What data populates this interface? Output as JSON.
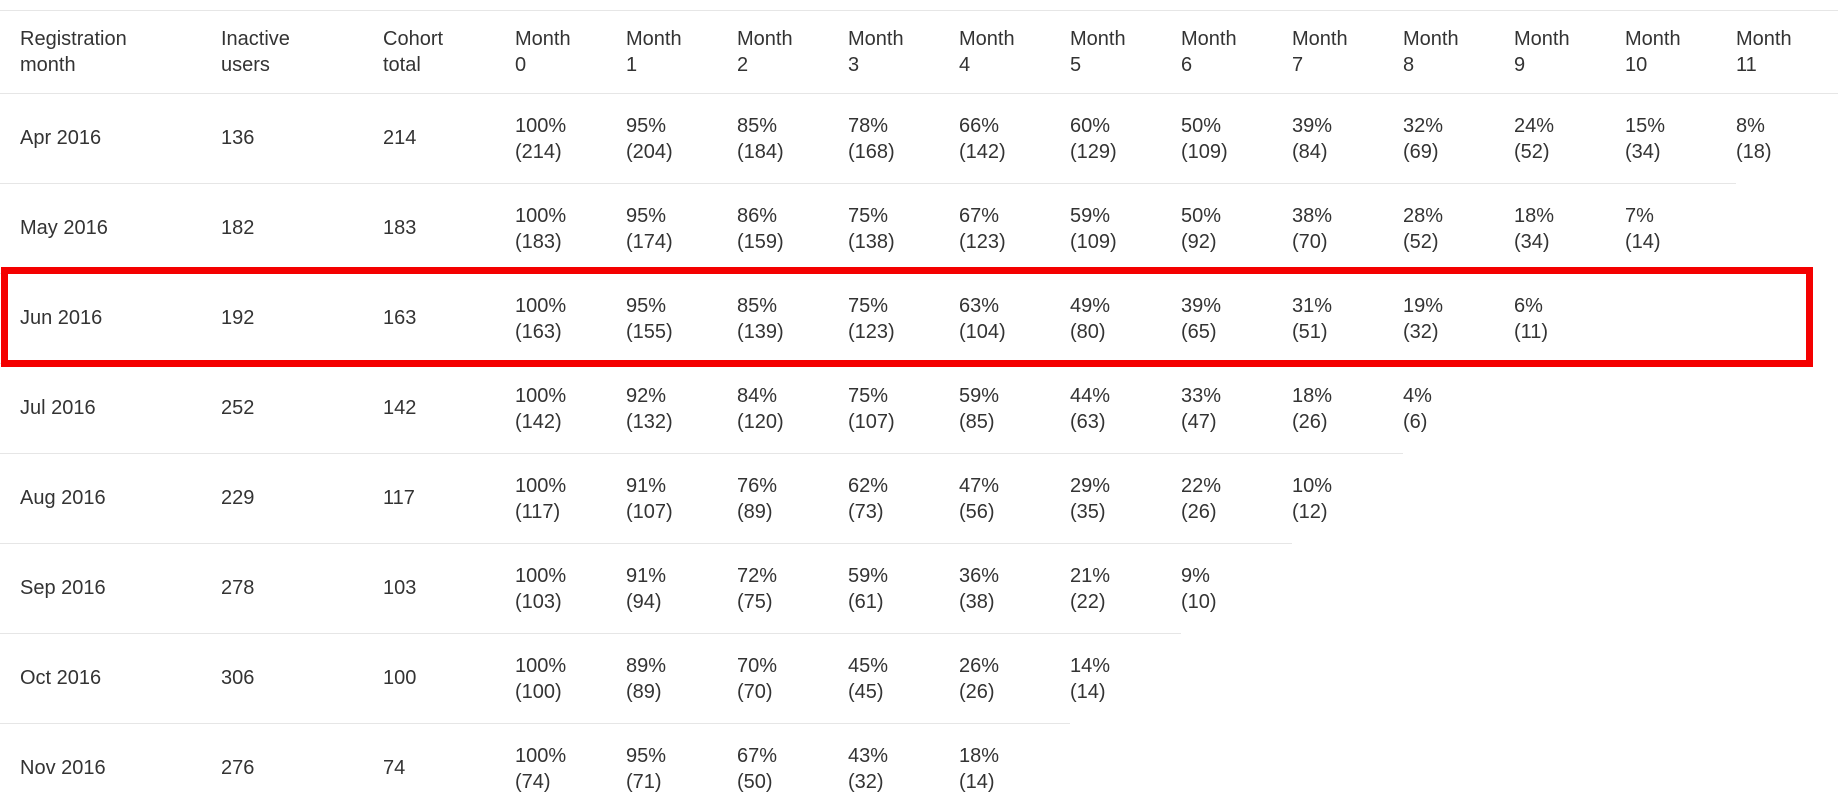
{
  "colors": {
    "text": "#333333",
    "divider": "#e6e6e6",
    "highlight_red": "#f40000",
    "background": "#ffffff"
  },
  "table": {
    "columns": [
      "Registration month",
      "Inactive users",
      "Cohort total",
      "Month 0",
      "Month 1",
      "Month 2",
      "Month 3",
      "Month 4",
      "Month 5",
      "Month 6",
      "Month 7",
      "Month 8",
      "Month 9",
      "Month 10",
      "Month 11"
    ],
    "rows": [
      {
        "registration_month": "Apr 2016",
        "inactive_users": "136",
        "cohort_total": "214",
        "months": [
          [
            "100%",
            "(214)"
          ],
          [
            "95%",
            "(204)"
          ],
          [
            "85%",
            "(184)"
          ],
          [
            "78%",
            "(168)"
          ],
          [
            "66%",
            "(142)"
          ],
          [
            "60%",
            "(129)"
          ],
          [
            "50%",
            "(109)"
          ],
          [
            "39%",
            "(84)"
          ],
          [
            "32%",
            "(69)"
          ],
          [
            "24%",
            "(52)"
          ],
          [
            "15%",
            "(34)"
          ],
          [
            "8%",
            "(18)"
          ]
        ]
      },
      {
        "registration_month": "May 2016",
        "inactive_users": "182",
        "cohort_total": "183",
        "months": [
          [
            "100%",
            "(183)"
          ],
          [
            "95%",
            "(174)"
          ],
          [
            "86%",
            "(159)"
          ],
          [
            "75%",
            "(138)"
          ],
          [
            "67%",
            "(123)"
          ],
          [
            "59%",
            "(109)"
          ],
          [
            "50%",
            "(92)"
          ],
          [
            "38%",
            "(70)"
          ],
          [
            "28%",
            "(52)"
          ],
          [
            "18%",
            "(34)"
          ],
          [
            "7%",
            "(14)"
          ]
        ]
      },
      {
        "registration_month": "Jun 2016",
        "inactive_users": "192",
        "cohort_total": "163",
        "months": [
          [
            "100%",
            "(163)"
          ],
          [
            "95%",
            "(155)"
          ],
          [
            "85%",
            "(139)"
          ],
          [
            "75%",
            "(123)"
          ],
          [
            "63%",
            "(104)"
          ],
          [
            "49%",
            "(80)"
          ],
          [
            "39%",
            "(65)"
          ],
          [
            "31%",
            "(51)"
          ],
          [
            "19%",
            "(32)"
          ],
          [
            "6%",
            "(11)"
          ]
        ]
      },
      {
        "registration_month": "Jul 2016",
        "inactive_users": "252",
        "cohort_total": "142",
        "months": [
          [
            "100%",
            "(142)"
          ],
          [
            "92%",
            "(132)"
          ],
          [
            "84%",
            "(120)"
          ],
          [
            "75%",
            "(107)"
          ],
          [
            "59%",
            "(85)"
          ],
          [
            "44%",
            "(63)"
          ],
          [
            "33%",
            "(47)"
          ],
          [
            "18%",
            "(26)"
          ],
          [
            "4%",
            "(6)"
          ]
        ]
      },
      {
        "registration_month": "Aug 2016",
        "inactive_users": "229",
        "cohort_total": "117",
        "months": [
          [
            "100%",
            "(117)"
          ],
          [
            "91%",
            "(107)"
          ],
          [
            "76%",
            "(89)"
          ],
          [
            "62%",
            "(73)"
          ],
          [
            "47%",
            "(56)"
          ],
          [
            "29%",
            "(35)"
          ],
          [
            "22%",
            "(26)"
          ],
          [
            "10%",
            "(12)"
          ]
        ]
      },
      {
        "registration_month": "Sep 2016",
        "inactive_users": "278",
        "cohort_total": "103",
        "months": [
          [
            "100%",
            "(103)"
          ],
          [
            "91%",
            "(94)"
          ],
          [
            "72%",
            "(75)"
          ],
          [
            "59%",
            "(61)"
          ],
          [
            "36%",
            "(38)"
          ],
          [
            "21%",
            "(22)"
          ],
          [
            "9%",
            "(10)"
          ]
        ]
      },
      {
        "registration_month": "Oct 2016",
        "inactive_users": "306",
        "cohort_total": "100",
        "months": [
          [
            "100%",
            "(100)"
          ],
          [
            "89%",
            "(89)"
          ],
          [
            "70%",
            "(70)"
          ],
          [
            "45%",
            "(45)"
          ],
          [
            "26%",
            "(26)"
          ],
          [
            "14%",
            "(14)"
          ]
        ]
      },
      {
        "registration_month": "Nov 2016",
        "inactive_users": "276",
        "cohort_total": "74",
        "months": [
          [
            "100%",
            "(74)"
          ],
          [
            "95%",
            "(71)"
          ],
          [
            "67%",
            "(50)"
          ],
          [
            "43%",
            "(32)"
          ],
          [
            "18%",
            "(14)"
          ]
        ]
      }
    ]
  },
  "annotation": {
    "highlighted_row": "Jun 2016"
  }
}
